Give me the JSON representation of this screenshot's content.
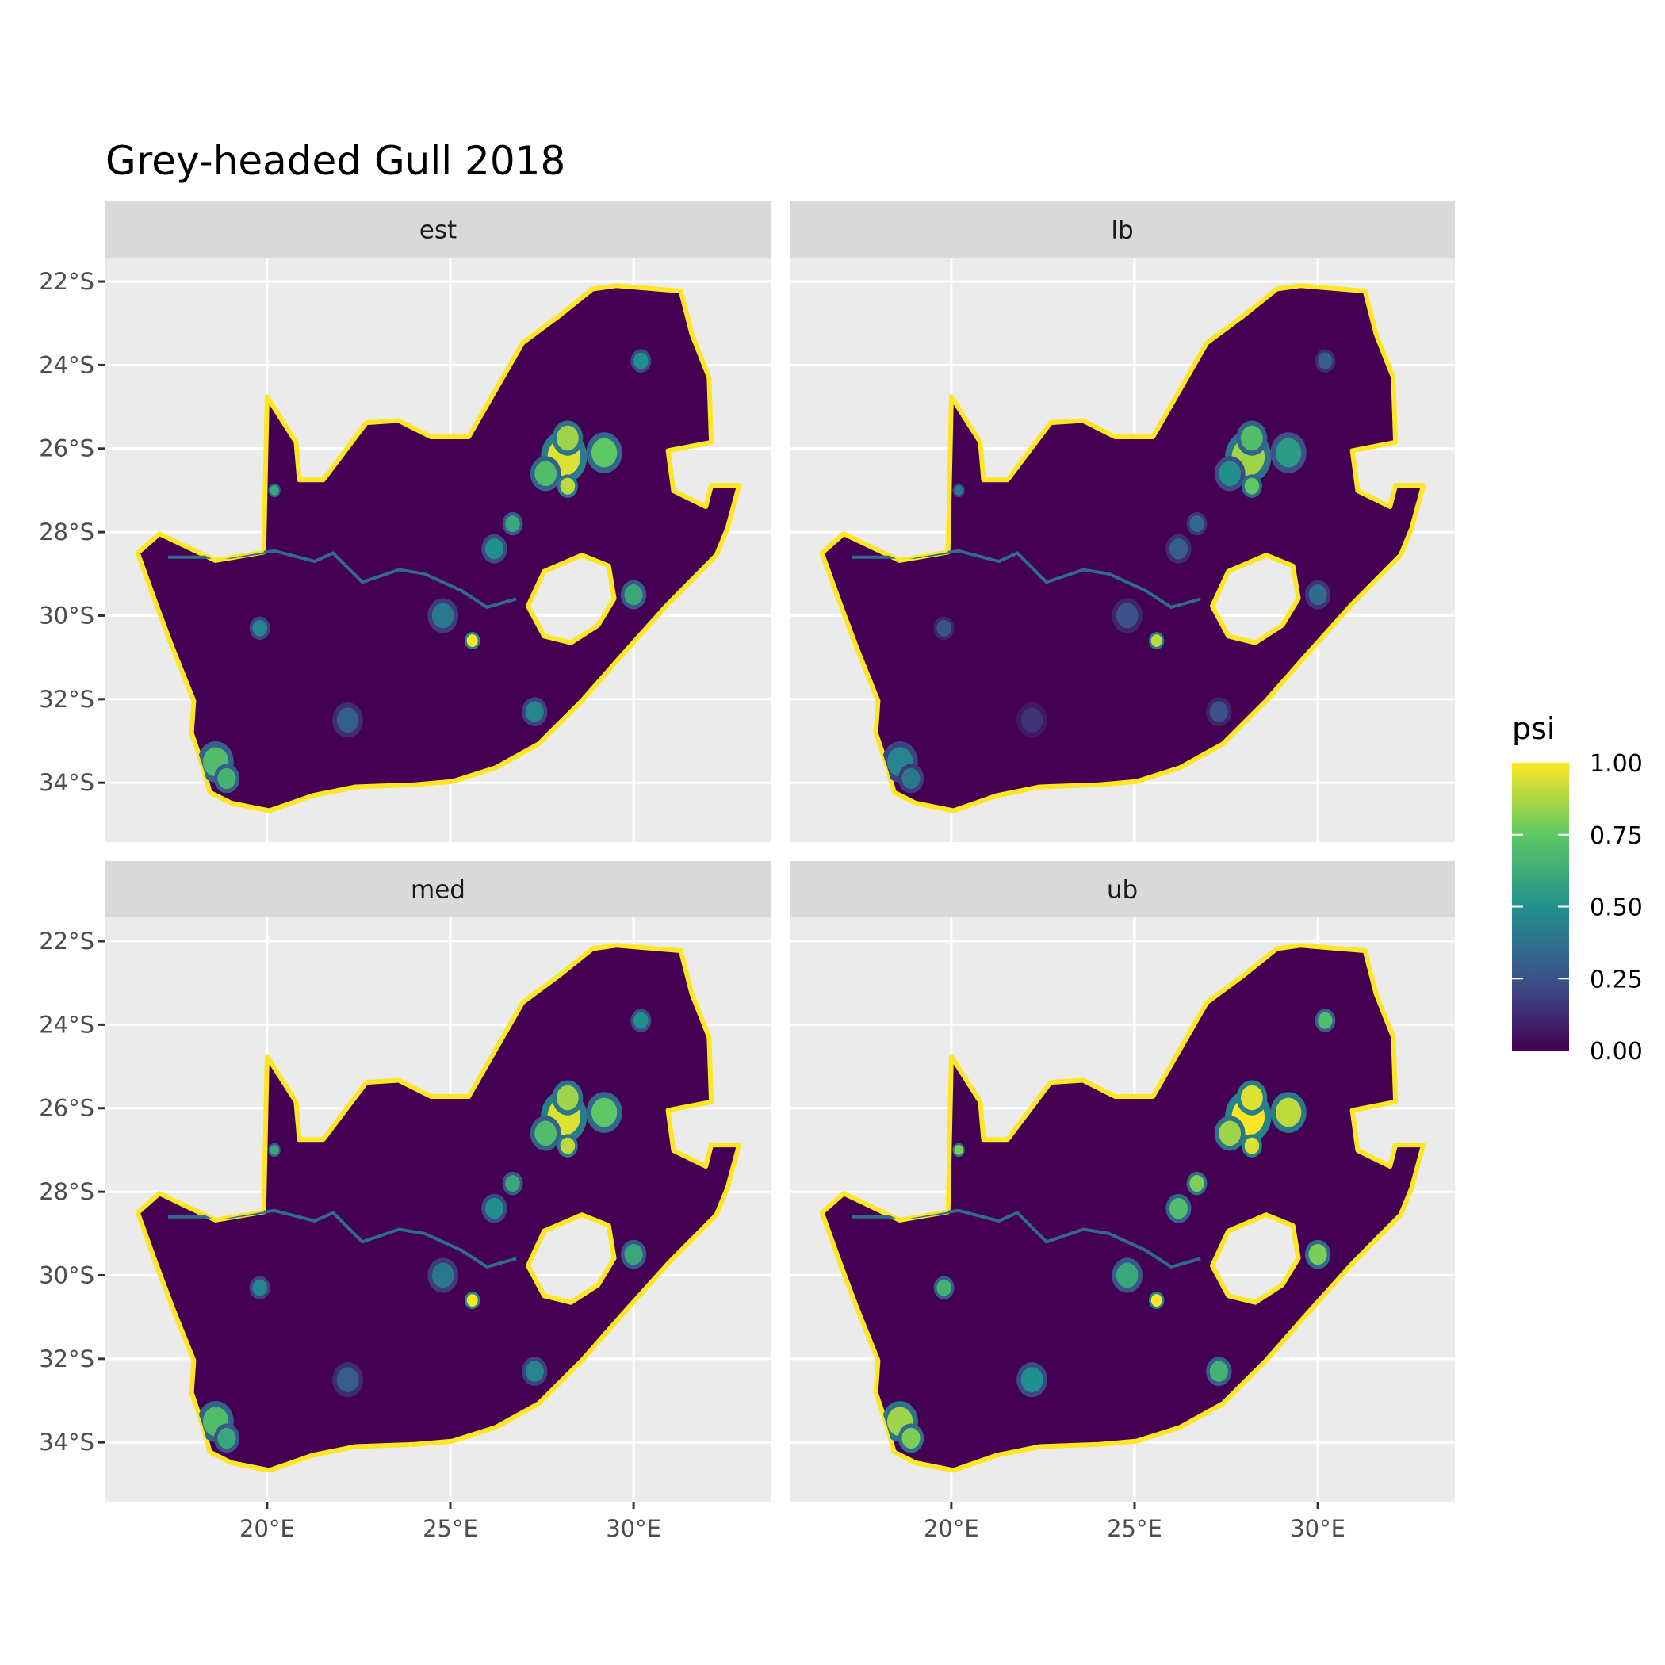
{
  "chart_data": {
    "type": "heatmap",
    "title": "Grey-headed Gull 2018",
    "facets": [
      "est",
      "lb",
      "med",
      "ub"
    ],
    "x_ticks": [
      {
        "value": 20,
        "label": "20°E"
      },
      {
        "value": 25,
        "label": "25°E"
      },
      {
        "value": 30,
        "label": "30°E"
      }
    ],
    "y_ticks": [
      {
        "value": -22,
        "label": "22°S"
      },
      {
        "value": -24,
        "label": "24°S"
      },
      {
        "value": -26,
        "label": "26°S"
      },
      {
        "value": -28,
        "label": "28°S"
      },
      {
        "value": -30,
        "label": "30°S"
      },
      {
        "value": -32,
        "label": "32°S"
      },
      {
        "value": -34,
        "label": "34°S"
      }
    ],
    "xlim": [
      15.59,
      33.74
    ],
    "ylim": [
      -35.42,
      -21.43
    ],
    "grid": true,
    "legend": {
      "title": "psi",
      "position": "right",
      "range": [
        0,
        1
      ],
      "breaks": [
        {
          "value": 1.0,
          "label": "1.00"
        },
        {
          "value": 0.75,
          "label": "0.75"
        },
        {
          "value": 0.5,
          "label": "0.50"
        },
        {
          "value": 0.25,
          "label": "0.25"
        },
        {
          "value": 0.0,
          "label": "0.00"
        }
      ],
      "colormap": "viridis",
      "colors": [
        "#440154",
        "#3B528B",
        "#21908C",
        "#5DC863",
        "#FDE725"
      ]
    },
    "background_psi": 0.0,
    "coast_psi": 1.0,
    "country_outline_lonlat": [
      [
        16.47,
        -28.5
      ],
      [
        17.06,
        -28.04
      ],
      [
        18.59,
        -28.68
      ],
      [
        19.91,
        -28.48
      ],
      [
        20.0,
        -24.76
      ],
      [
        20.79,
        -25.85
      ],
      [
        20.88,
        -26.75
      ],
      [
        21.53,
        -26.75
      ],
      [
        22.71,
        -25.38
      ],
      [
        23.59,
        -25.33
      ],
      [
        24.47,
        -25.72
      ],
      [
        25.5,
        -25.72
      ],
      [
        26.97,
        -23.47
      ],
      [
        28.0,
        -22.8
      ],
      [
        28.88,
        -22.18
      ],
      [
        29.53,
        -22.1
      ],
      [
        31.29,
        -22.23
      ],
      [
        31.59,
        -23.26
      ],
      [
        32.06,
        -24.3
      ],
      [
        32.12,
        -25.85
      ],
      [
        30.94,
        -26.05
      ],
      [
        31.09,
        -27.01
      ],
      [
        31.97,
        -27.39
      ],
      [
        32.12,
        -26.88
      ],
      [
        32.88,
        -26.88
      ],
      [
        32.56,
        -27.91
      ],
      [
        32.26,
        -28.55
      ],
      [
        30.94,
        -29.72
      ],
      [
        29.62,
        -31.01
      ],
      [
        28.59,
        -32.04
      ],
      [
        27.41,
        -33.07
      ],
      [
        26.24,
        -33.64
      ],
      [
        25.06,
        -33.97
      ],
      [
        24.03,
        -34.05
      ],
      [
        22.41,
        -34.1
      ],
      [
        21.24,
        -34.31
      ],
      [
        20.06,
        -34.67
      ],
      [
        19.03,
        -34.49
      ],
      [
        18.44,
        -34.23
      ],
      [
        18.24,
        -33.59
      ],
      [
        17.94,
        -32.81
      ],
      [
        18.0,
        -32.04
      ],
      [
        17.41,
        -30.75
      ],
      [
        16.97,
        -29.72
      ]
    ],
    "hole_outline_lonlat": [
      [
        27.12,
        -29.77
      ],
      [
        27.56,
        -28.94
      ],
      [
        28.59,
        -28.55
      ],
      [
        29.32,
        -28.81
      ],
      [
        29.47,
        -29.59
      ],
      [
        29.03,
        -30.23
      ],
      [
        28.29,
        -30.65
      ],
      [
        27.56,
        -30.49
      ]
    ],
    "river_lonlat": [
      [
        17.3,
        -28.6
      ],
      [
        19.0,
        -28.6
      ],
      [
        20.2,
        -28.45
      ],
      [
        21.3,
        -28.7
      ],
      [
        21.8,
        -28.5
      ],
      [
        22.6,
        -29.2
      ],
      [
        23.6,
        -28.9
      ],
      [
        24.3,
        -29.0
      ],
      [
        25.3,
        -29.4
      ],
      [
        26.0,
        -29.8
      ],
      [
        26.8,
        -29.6
      ]
    ],
    "hotspots": [
      {
        "lon": 28.1,
        "lat": -26.2,
        "r": 0.45,
        "psi": [
          0.95,
          0.85,
          0.95,
          1.0
        ]
      },
      {
        "lon": 28.2,
        "lat": -25.75,
        "r": 0.3,
        "psi": [
          0.85,
          0.7,
          0.85,
          0.95
        ]
      },
      {
        "lon": 29.2,
        "lat": -26.1,
        "r": 0.35,
        "psi": [
          0.75,
          0.55,
          0.75,
          0.9
        ]
      },
      {
        "lon": 27.6,
        "lat": -26.6,
        "r": 0.3,
        "psi": [
          0.7,
          0.5,
          0.7,
          0.85
        ]
      },
      {
        "lon": 28.2,
        "lat": -26.9,
        "r": 0.2,
        "psi": [
          0.9,
          0.75,
          0.9,
          0.95
        ]
      },
      {
        "lon": 18.6,
        "lat": -33.5,
        "r": 0.35,
        "psi": [
          0.7,
          0.45,
          0.7,
          0.85
        ]
      },
      {
        "lon": 18.9,
        "lat": -33.9,
        "r": 0.25,
        "psi": [
          0.65,
          0.4,
          0.6,
          0.8
        ]
      },
      {
        "lon": 25.6,
        "lat": -30.6,
        "r": 0.15,
        "psi": [
          1.0,
          0.9,
          1.0,
          1.0
        ]
      },
      {
        "lon": 26.2,
        "lat": -28.4,
        "r": 0.25,
        "psi": [
          0.5,
          0.3,
          0.5,
          0.7
        ]
      },
      {
        "lon": 26.7,
        "lat": -27.8,
        "r": 0.2,
        "psi": [
          0.6,
          0.35,
          0.6,
          0.8
        ]
      },
      {
        "lon": 30.0,
        "lat": -29.5,
        "r": 0.25,
        "psi": [
          0.6,
          0.35,
          0.6,
          0.8
        ]
      },
      {
        "lon": 30.2,
        "lat": -23.9,
        "r": 0.2,
        "psi": [
          0.5,
          0.3,
          0.5,
          0.7
        ]
      },
      {
        "lon": 24.8,
        "lat": -30.0,
        "r": 0.3,
        "psi": [
          0.4,
          0.25,
          0.4,
          0.6
        ]
      },
      {
        "lon": 19.8,
        "lat": -30.3,
        "r": 0.2,
        "psi": [
          0.45,
          0.25,
          0.45,
          0.65
        ]
      },
      {
        "lon": 22.2,
        "lat": -32.5,
        "r": 0.3,
        "psi": [
          0.3,
          0.15,
          0.3,
          0.5
        ]
      },
      {
        "lon": 27.3,
        "lat": -32.3,
        "r": 0.25,
        "psi": [
          0.45,
          0.25,
          0.45,
          0.65
        ]
      },
      {
        "lon": 20.2,
        "lat": -27.0,
        "r": 0.12,
        "psi": [
          0.6,
          0.4,
          0.6,
          0.8
        ]
      }
    ]
  }
}
